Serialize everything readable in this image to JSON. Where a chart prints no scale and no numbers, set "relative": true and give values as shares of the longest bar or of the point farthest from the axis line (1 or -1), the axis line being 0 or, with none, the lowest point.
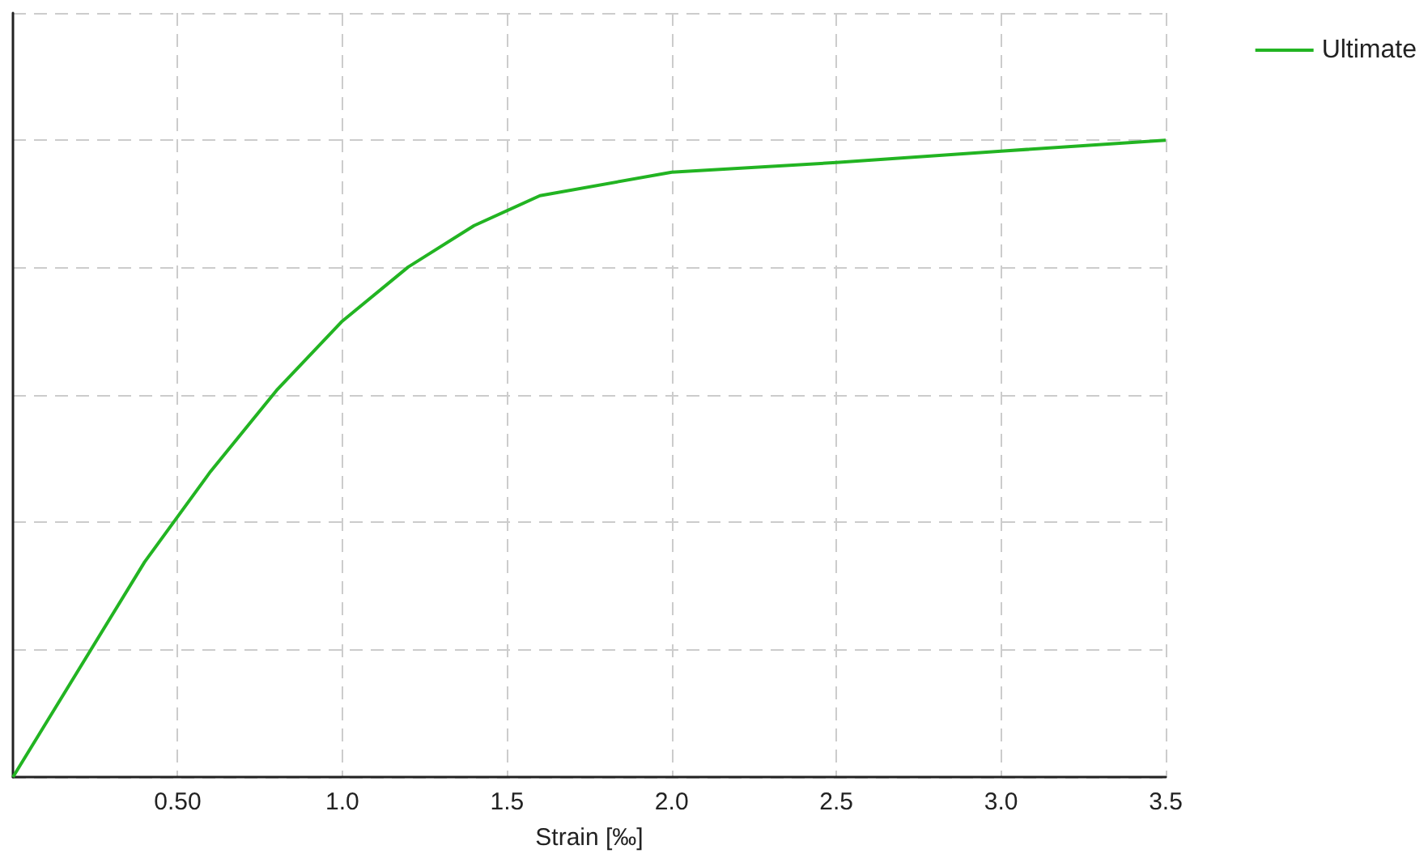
{
  "chart_data": {
    "type": "line",
    "xlabel": "Strain [‰]",
    "relative": true,
    "grid": true,
    "legend": "top right",
    "marker": "none",
    "line_style": "solid",
    "x": [
      0,
      0.4,
      0.6,
      0.8,
      1.0,
      1.2,
      1.4,
      1.6,
      2.0,
      2.5,
      3.0,
      3.5
    ],
    "xlim": [
      0,
      3.5
    ],
    "xticks": [
      {
        "value": 0.5,
        "label": "0.50"
      },
      {
        "value": 1.0,
        "label": "1.0"
      },
      {
        "value": 1.5,
        "label": "1.5"
      },
      {
        "value": 2.0,
        "label": "2.0"
      },
      {
        "value": 2.5,
        "label": "2.5"
      },
      {
        "value": 3.0,
        "label": "3.0"
      },
      {
        "value": 3.5,
        "label": "3.5"
      }
    ],
    "series": [
      {
        "name": "Ultimate",
        "color": "#22b422",
        "values": [
          0,
          0.338,
          0.48,
          0.607,
          0.716,
          0.801,
          0.866,
          0.913,
          0.95,
          0.965,
          0.983,
          1
        ]
      }
    ]
  }
}
